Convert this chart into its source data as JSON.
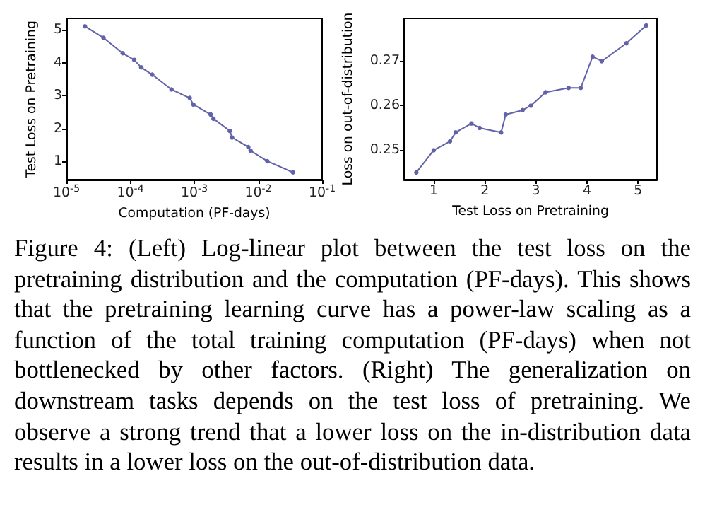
{
  "chart_data": [
    {
      "type": "line",
      "xlabel": "Computation (PF-days)",
      "ylabel": "Test Loss on Pretraining",
      "log": "x",
      "marker": "circle",
      "line_style": "solid",
      "xlim": [
        1e-05,
        0.1
      ],
      "ylim": [
        0.45,
        5.35
      ],
      "xticks": [
        {
          "value": 1e-05,
          "label": "10$^{-5}$"
        },
        {
          "value": 0.0001,
          "label": "10$^{-4}$"
        },
        {
          "value": 0.001,
          "label": "10$^{-3}$"
        },
        {
          "value": 0.01,
          "label": "10$^{-2}$"
        },
        {
          "value": 0.1,
          "label": "10$^{-1}$"
        }
      ],
      "yticks": [
        1,
        2,
        3,
        4,
        5
      ],
      "series": [
        {
          "color": "#6262a8",
          "x": [
            1.95e-05,
            3.8e-05,
            7.6e-05,
            0.000115,
            0.000148,
            0.00022,
            0.00044,
            0.00085,
            0.00097,
            0.0018,
            0.002,
            0.0036,
            0.0039,
            0.007,
            0.0076,
            0.0139,
            0.035
          ],
          "values": [
            5.11,
            4.76,
            4.29,
            4.09,
            3.86,
            3.64,
            3.19,
            2.93,
            2.73,
            2.43,
            2.3,
            1.93,
            1.73,
            1.44,
            1.33,
            1.01,
            0.67
          ]
        }
      ],
      "annotations": [
        "Figure 4: (Left) Log-linear plot between the test loss on the pretraining distribution and the computation (PF-days). This shows that the pretraining learning curve has a power-law scaling as a function of the total training computation (PF-days) when not bottlenecked by other factors. (Right) The generalization on downstream tasks depends on the test loss of pretraining. We observe a strong trend that a lower loss on the in-distribution data results in a lower loss on the out-of-distribution data."
      ]
    },
    {
      "type": "line",
      "xlabel": "Test Loss on Pretraining",
      "ylabel": "Loss on out-of-distribution",
      "marker": "circle",
      "line_style": "solid",
      "xlim": [
        0.42,
        5.37
      ],
      "ylim": [
        0.2434,
        0.2796
      ],
      "xticks": [
        1,
        2,
        3,
        4,
        5
      ],
      "yticks": [
        0.25,
        0.26,
        0.27
      ],
      "series": [
        {
          "color": "#6262a8",
          "x": [
            0.66,
            1.0,
            1.32,
            1.43,
            1.74,
            1.9,
            2.32,
            2.41,
            2.74,
            2.9,
            3.19,
            3.64,
            3.88,
            4.11,
            4.29,
            4.77,
            5.16
          ],
          "values": [
            0.245,
            0.25,
            0.252,
            0.254,
            0.256,
            0.255,
            0.254,
            0.258,
            0.259,
            0.26,
            0.263,
            0.264,
            0.264,
            0.271,
            0.27,
            0.274,
            0.278
          ]
        }
      ]
    }
  ]
}
